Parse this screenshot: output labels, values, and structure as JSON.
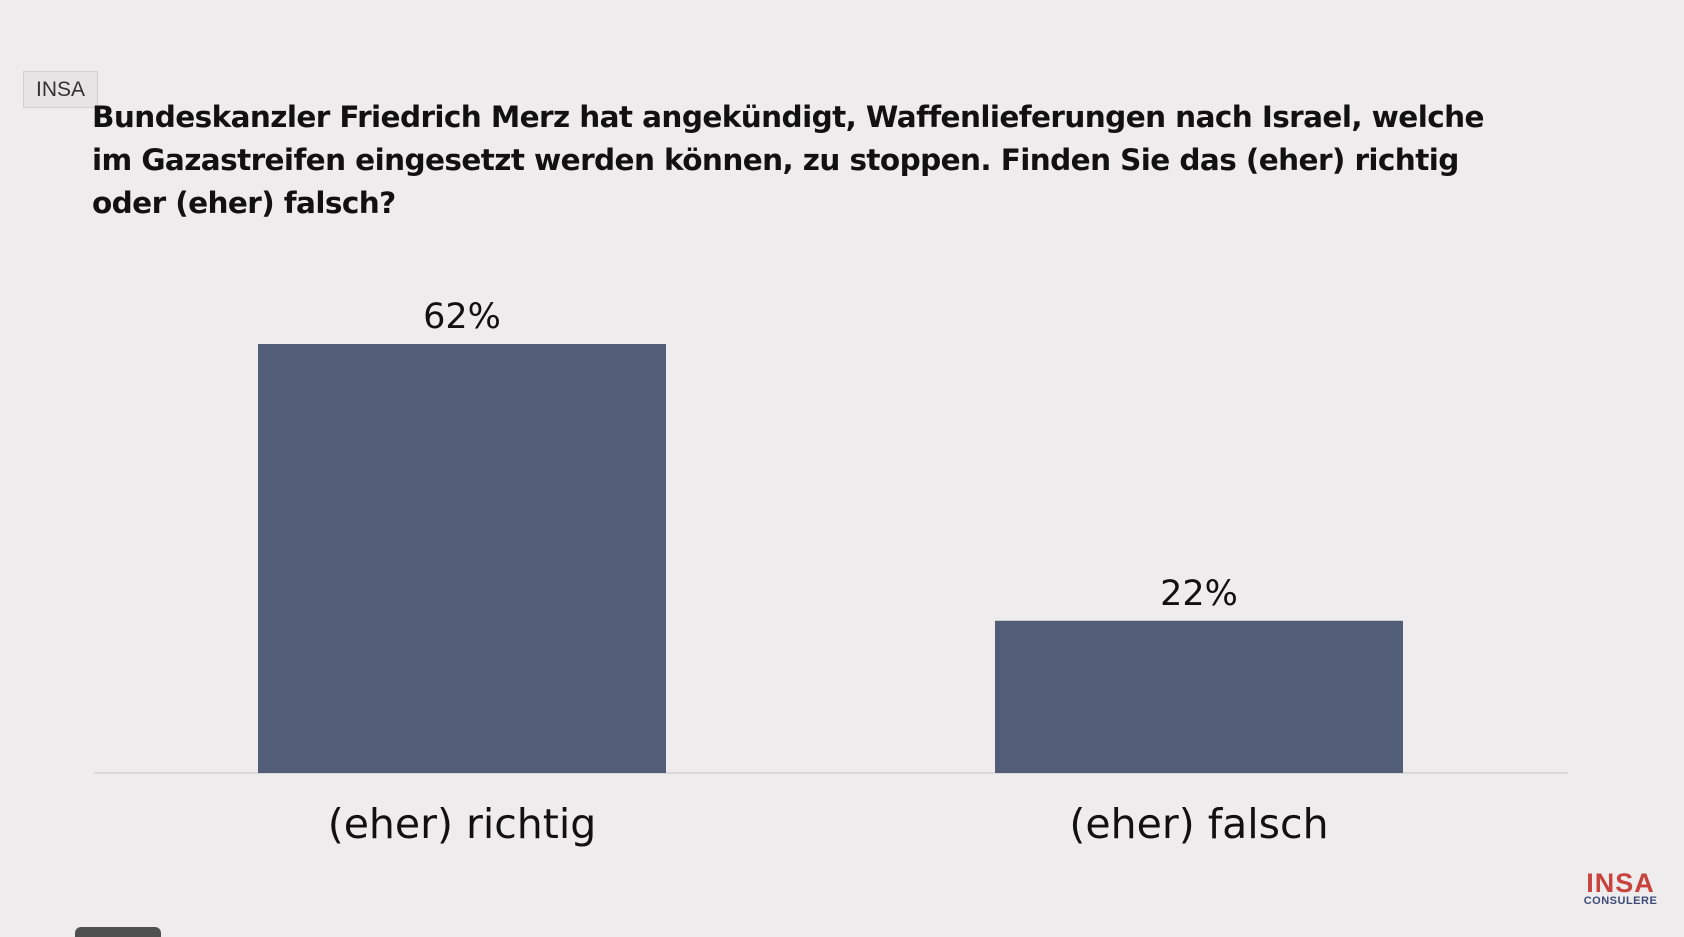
{
  "source_tag": "INSA",
  "logo": {
    "main": "INSA",
    "sub": "CONSULERE"
  },
  "colors": {
    "background": "#eeecec",
    "bar": "#525e77",
    "logo_main": "#c8423e",
    "logo_sub": "#3d4a78"
  },
  "chart_data": {
    "type": "bar",
    "title": "Bundeskanzler Friedrich Merz hat angekündigt, Waffenlieferungen nach Israel, welche im Gazastreifen eingesetzt werden können, zu stoppen. Finden Sie das (eher) richtig oder (eher) falsch?",
    "categories": [
      "(eher) richtig",
      "(eher) falsch"
    ],
    "values": [
      62,
      22
    ],
    "value_labels": [
      "62%",
      "22%"
    ],
    "unit": "%",
    "ylim": [
      0,
      62
    ],
    "grid": false,
    "legend": "none"
  }
}
